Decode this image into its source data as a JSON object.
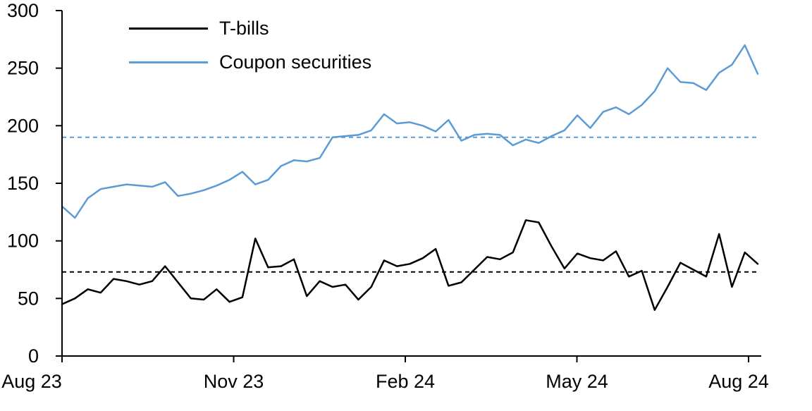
{
  "chart_data": {
    "type": "line",
    "title": "",
    "x_tick_labels": [
      "Aug 23",
      "Nov 23",
      "Feb 24",
      "May 24",
      "Aug 24"
    ],
    "y_ticks": [
      0,
      50,
      100,
      150,
      200,
      250,
      300
    ],
    "ylim": [
      0,
      300
    ],
    "grid": false,
    "legend_position": "top-left-inside",
    "series": [
      {
        "name": "T-bills",
        "color": "#000000",
        "values": [
          45,
          50,
          58,
          55,
          67,
          65,
          62,
          65,
          78,
          64,
          50,
          49,
          58,
          47,
          51,
          102,
          77,
          78,
          84,
          52,
          65,
          60,
          62,
          49,
          60,
          83,
          78,
          80,
          85,
          93,
          61,
          64,
          75,
          86,
          84,
          90,
          118,
          116,
          95,
          76,
          89,
          85,
          83,
          91,
          69,
          74,
          40,
          60,
          81,
          75,
          69,
          106,
          60,
          90,
          80
        ]
      },
      {
        "name": "Coupon securities",
        "color": "#5B9BD5",
        "values": [
          130,
          120,
          137,
          145,
          147,
          149,
          148,
          147,
          151,
          139,
          141,
          144,
          148,
          153,
          160,
          149,
          153,
          165,
          170,
          169,
          172,
          190,
          191,
          192,
          196,
          210,
          202,
          203,
          200,
          195,
          205,
          187,
          192,
          193,
          192,
          183,
          188,
          185,
          191,
          196,
          209,
          198,
          212,
          216,
          210,
          218,
          230,
          250,
          238,
          237,
          231,
          246,
          253,
          270,
          245
        ]
      }
    ],
    "reference_lines": [
      {
        "series": "T-bills",
        "value": 73,
        "color": "#000000",
        "style": "dashed"
      },
      {
        "series": "Coupon securities",
        "value": 190,
        "color": "#5B9BD5",
        "style": "dashed"
      }
    ]
  }
}
